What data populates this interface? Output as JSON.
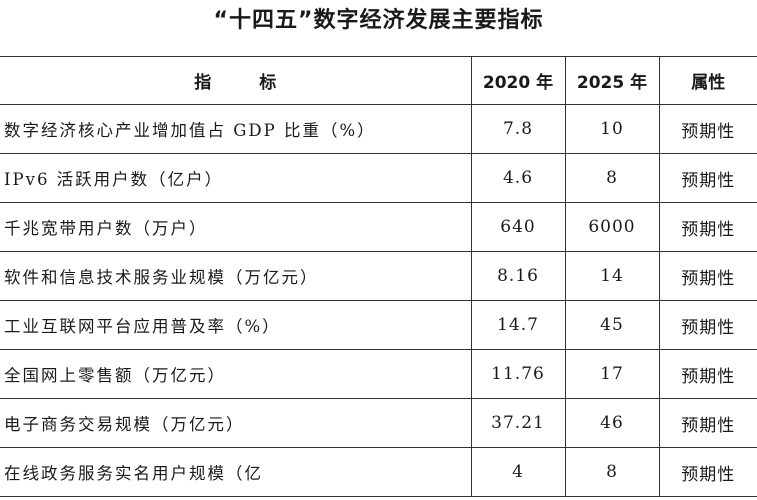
{
  "title": "“十四五”数字经济发展主要指标",
  "table": {
    "headers": {
      "indicator": "指标",
      "y2020": "2020 年",
      "y2025": "2025 年",
      "attribute": "属性"
    },
    "rows": [
      {
        "indicator": "数字经济核心产业增加值占 GDP 比重（%）",
        "y2020": "7.8",
        "y2025": "10",
        "attribute": "预期性"
      },
      {
        "indicator": "IPv6 活跃用户数（亿户）",
        "y2020": "4.6",
        "y2025": "8",
        "attribute": "预期性"
      },
      {
        "indicator": "千兆宽带用户数（万户）",
        "y2020": "640",
        "y2025": "6000",
        "attribute": "预期性"
      },
      {
        "indicator": "软件和信息技术服务业规模（万亿元）",
        "y2020": "8.16",
        "y2025": "14",
        "attribute": "预期性"
      },
      {
        "indicator": "工业互联网平台应用普及率（%）",
        "y2020": "14.7",
        "y2025": "45",
        "attribute": "预期性"
      },
      {
        "indicator": "全国网上零售额（万亿元）",
        "y2020": "11.76",
        "y2025": "17",
        "attribute": "预期性"
      },
      {
        "indicator": "电子商务交易规模（万亿元）",
        "y2020": "37.21",
        "y2025": "46",
        "attribute": "预期性"
      },
      {
        "indicator": "在线政务服务实名用户规模（亿",
        "y2020": "4",
        "y2025": "8",
        "attribute": "预期性"
      }
    ]
  }
}
